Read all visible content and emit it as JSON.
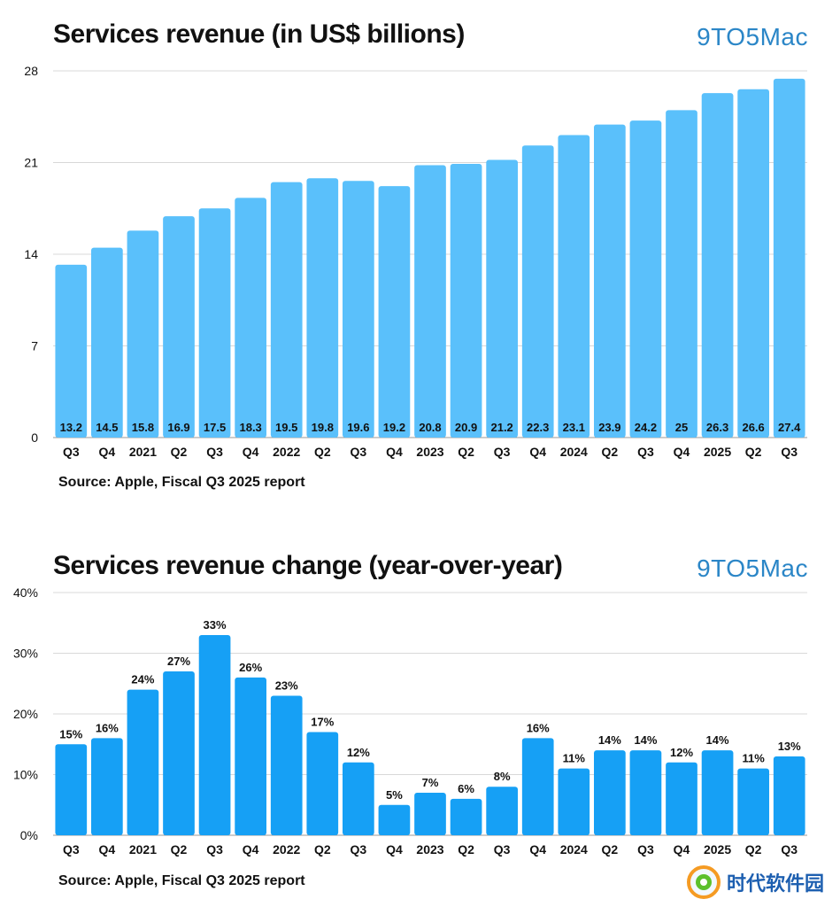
{
  "charts": [
    {
      "title": "Services revenue (in US$ billions)",
      "brand": "9TO5Mac",
      "source": "Source: Apple, Fiscal Q3 2025 report"
    },
    {
      "title": "Services revenue change (year-over-year)",
      "brand": "9TO5Mac",
      "source": "Source: Apple, Fiscal Q3 2025 report"
    }
  ],
  "watermark": {
    "text": "时代软件园"
  },
  "chart_data": [
    {
      "type": "bar",
      "title": "Services revenue (in US$ billions)",
      "categories": [
        "Q3",
        "Q4",
        "2021",
        "Q2",
        "Q3",
        "Q4",
        "2022",
        "Q2",
        "Q3",
        "Q4",
        "2023",
        "Q2",
        "Q3",
        "Q4",
        "2024",
        "Q2",
        "Q3",
        "Q4",
        "2025",
        "Q2",
        "Q3"
      ],
      "values": [
        13.2,
        14.5,
        15.8,
        16.9,
        17.5,
        18.3,
        19.5,
        19.8,
        19.6,
        19.2,
        20.8,
        20.9,
        21.2,
        22.3,
        23.1,
        23.9,
        24.2,
        25,
        26.3,
        26.6,
        27.4
      ],
      "value_labels": [
        "13.2",
        "14.5",
        "15.8",
        "16.9",
        "17.5",
        "18.3",
        "19.5",
        "19.8",
        "19.6",
        "19.2",
        "20.8",
        "20.9",
        "21.2",
        "22.3",
        "23.1",
        "23.9",
        "24.2",
        "25",
        "26.3",
        "26.6",
        "27.4"
      ],
      "ylim": [
        0,
        28
      ],
      "yticks": [
        0,
        7,
        14,
        21,
        28
      ],
      "ytick_labels": [
        "0",
        "7",
        "14",
        "21",
        "28"
      ],
      "grid": true,
      "bar_color": "#5ac0fb",
      "label_position": "inside-bottom"
    },
    {
      "type": "bar",
      "title": "Services revenue change (year-over-year)",
      "categories": [
        "Q3",
        "Q4",
        "2021",
        "Q2",
        "Q3",
        "Q4",
        "2022",
        "Q2",
        "Q3",
        "Q4",
        "2023",
        "Q2",
        "Q3",
        "Q4",
        "2024",
        "Q2",
        "Q3",
        "Q4",
        "2025",
        "Q2",
        "Q3"
      ],
      "values": [
        15,
        16,
        24,
        27,
        33,
        26,
        23,
        17,
        12,
        5,
        7,
        6,
        8,
        16,
        11,
        14,
        14,
        12,
        14,
        11,
        13
      ],
      "value_labels": [
        "15%",
        "16%",
        "24%",
        "27%",
        "33%",
        "26%",
        "23%",
        "17%",
        "12%",
        "5%",
        "7%",
        "6%",
        "8%",
        "16%",
        "11%",
        "14%",
        "14%",
        "12%",
        "14%",
        "11%",
        "13%"
      ],
      "ylim": [
        0,
        40
      ],
      "yticks": [
        0,
        10,
        20,
        30,
        40
      ],
      "ytick_labels": [
        "0%",
        "10%",
        "20%",
        "30%",
        "40%"
      ],
      "grid": true,
      "bar_color": "#16a0f5",
      "label_position": "above"
    }
  ]
}
